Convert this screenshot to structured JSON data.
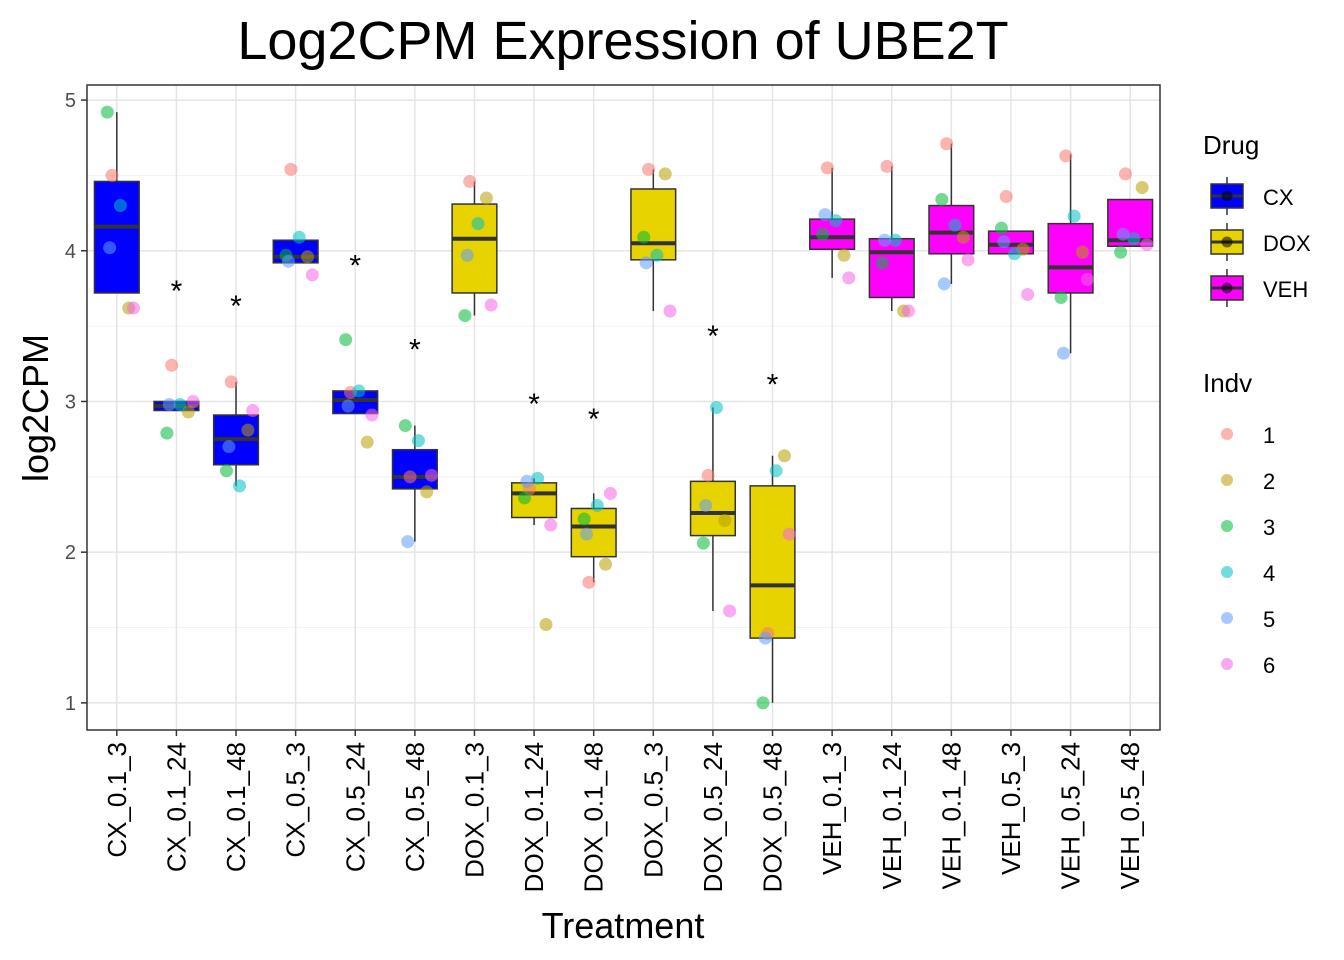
{
  "chart_data": {
    "type": "box",
    "title": "Log2CPM Expression of UBE2T",
    "xlabel": "Treatment",
    "ylabel": "log2CPM",
    "ylim": [
      0.82,
      5.1
    ],
    "yticks": [
      1,
      2,
      3,
      4,
      5
    ],
    "grid": true,
    "categories": [
      "CX_0.1_3",
      "CX_0.1_24",
      "CX_0.1_48",
      "CX_0.5_3",
      "CX_0.5_24",
      "CX_0.5_48",
      "DOX_0.1_3",
      "DOX_0.1_24",
      "DOX_0.1_48",
      "DOX_0.5_3",
      "DOX_0.5_24",
      "DOX_0.5_48",
      "VEH_0.1_3",
      "VEH_0.1_24",
      "VEH_0.1_48",
      "VEH_0.5_3",
      "VEH_0.5_24",
      "VEH_0.5_48"
    ],
    "drug": [
      "CX",
      "CX",
      "CX",
      "CX",
      "CX",
      "CX",
      "DOX",
      "DOX",
      "DOX",
      "DOX",
      "DOX",
      "DOX",
      "VEH",
      "VEH",
      "VEH",
      "VEH",
      "VEH",
      "VEH"
    ],
    "boxes": [
      {
        "q1": 3.72,
        "median": 4.16,
        "q3": 4.46,
        "whisker_low": 3.72,
        "whisker_high": 4.92
      },
      {
        "q1": 2.94,
        "median": 2.97,
        "q3": 3.0,
        "whisker_low": 2.94,
        "whisker_high": 3.0
      },
      {
        "q1": 2.58,
        "median": 2.75,
        "q3": 2.91,
        "whisker_low": 2.44,
        "whisker_high": 3.13
      },
      {
        "q1": 3.92,
        "median": 3.96,
        "q3": 4.07,
        "whisker_low": 3.92,
        "whisker_high": 4.07
      },
      {
        "q1": 2.92,
        "median": 3.01,
        "q3": 3.07,
        "whisker_low": 2.92,
        "whisker_high": 3.07
      },
      {
        "q1": 2.42,
        "median": 2.5,
        "q3": 2.68,
        "whisker_low": 2.07,
        "whisker_high": 2.84
      },
      {
        "q1": 3.72,
        "median": 4.08,
        "q3": 4.31,
        "whisker_low": 3.57,
        "whisker_high": 4.46
      },
      {
        "q1": 2.23,
        "median": 2.39,
        "q3": 2.46,
        "whisker_low": 2.18,
        "whisker_high": 2.49
      },
      {
        "q1": 1.97,
        "median": 2.17,
        "q3": 2.29,
        "whisker_low": 1.8,
        "whisker_high": 2.39
      },
      {
        "q1": 3.94,
        "median": 4.05,
        "q3": 4.41,
        "whisker_low": 3.6,
        "whisker_high": 4.54
      },
      {
        "q1": 2.11,
        "median": 2.26,
        "q3": 2.47,
        "whisker_low": 1.61,
        "whisker_high": 2.96
      },
      {
        "q1": 1.43,
        "median": 1.78,
        "q3": 2.44,
        "whisker_low": 1.0,
        "whisker_high": 2.64
      },
      {
        "q1": 4.01,
        "median": 4.09,
        "q3": 4.21,
        "whisker_low": 3.82,
        "whisker_high": 4.55
      },
      {
        "q1": 3.69,
        "median": 3.99,
        "q3": 4.08,
        "whisker_low": 3.6,
        "whisker_high": 4.56
      },
      {
        "q1": 3.98,
        "median": 4.12,
        "q3": 4.3,
        "whisker_low": 3.78,
        "whisker_high": 4.71
      },
      {
        "q1": 3.98,
        "median": 4.04,
        "q3": 4.13,
        "whisker_low": 3.98,
        "whisker_high": 4.13
      },
      {
        "q1": 3.72,
        "median": 3.89,
        "q3": 4.18,
        "whisker_low": 3.32,
        "whisker_high": 4.64
      },
      {
        "q1": 4.03,
        "median": 4.07,
        "q3": 4.34,
        "whisker_low": 4.03,
        "whisker_high": 4.34
      }
    ],
    "points": [
      [
        4.5,
        3.62,
        4.92,
        4.3,
        4.02,
        3.62
      ],
      [
        3.24,
        2.93,
        2.79,
        2.98,
        2.98,
        3.0
      ],
      [
        3.13,
        2.81,
        2.54,
        2.44,
        2.7,
        2.94
      ],
      [
        4.54,
        3.96,
        3.97,
        4.09,
        3.93,
        3.84
      ],
      [
        3.06,
        2.73,
        3.41,
        3.07,
        2.97,
        2.91
      ],
      [
        2.5,
        2.4,
        2.84,
        2.74,
        2.07,
        2.51
      ],
      [
        4.46,
        4.35,
        3.57,
        4.18,
        3.97,
        3.64
      ],
      [
        2.42,
        1.52,
        2.36,
        2.49,
        2.47,
        2.18
      ],
      [
        1.8,
        1.92,
        2.22,
        2.31,
        2.12,
        2.39
      ],
      [
        4.54,
        4.51,
        4.09,
        3.97,
        3.92,
        3.6
      ],
      [
        2.51,
        2.21,
        2.06,
        2.96,
        2.31,
        1.61
      ],
      [
        1.46,
        2.64,
        1.0,
        2.54,
        1.43,
        2.12
      ],
      [
        4.55,
        3.97,
        4.11,
        4.2,
        4.24,
        3.82
      ],
      [
        4.56,
        3.6,
        3.92,
        4.07,
        4.07,
        3.6
      ],
      [
        4.71,
        4.09,
        4.34,
        4.17,
        3.78,
        3.94
      ],
      [
        4.36,
        4.01,
        4.15,
        3.98,
        4.06,
        3.71
      ],
      [
        4.63,
        3.99,
        3.69,
        4.23,
        3.32,
        3.81
      ],
      [
        4.51,
        4.42,
        3.99,
        4.08,
        4.11,
        4.04
      ]
    ],
    "significance": [
      {
        "index": 1,
        "label": "*",
        "y": 3.76
      },
      {
        "index": 2,
        "label": "*",
        "y": 3.66
      },
      {
        "index": 4,
        "label": "*",
        "y": 3.93
      },
      {
        "index": 5,
        "label": "*",
        "y": 3.37
      },
      {
        "index": 7,
        "label": "*",
        "y": 3.01
      },
      {
        "index": 8,
        "label": "*",
        "y": 2.91
      },
      {
        "index": 10,
        "label": "*",
        "y": 3.46
      },
      {
        "index": 11,
        "label": "*",
        "y": 3.14
      }
    ],
    "legend_drug": {
      "title": "Drug",
      "items": [
        {
          "label": "CX",
          "color": "#0000FF"
        },
        {
          "label": "DOX",
          "color": "#E6D300"
        },
        {
          "label": "VEH",
          "color": "#FF00FF"
        }
      ]
    },
    "legend_indv": {
      "title": "Indv",
      "items": [
        {
          "label": "1",
          "color": "#F8766D"
        },
        {
          "label": "2",
          "color": "#B79F00"
        },
        {
          "label": "3",
          "color": "#00BA38"
        },
        {
          "label": "4",
          "color": "#00BFC4"
        },
        {
          "label": "5",
          "color": "#619CFF"
        },
        {
          "label": "6",
          "color": "#F564E3"
        }
      ]
    },
    "legend_placement": "right"
  }
}
